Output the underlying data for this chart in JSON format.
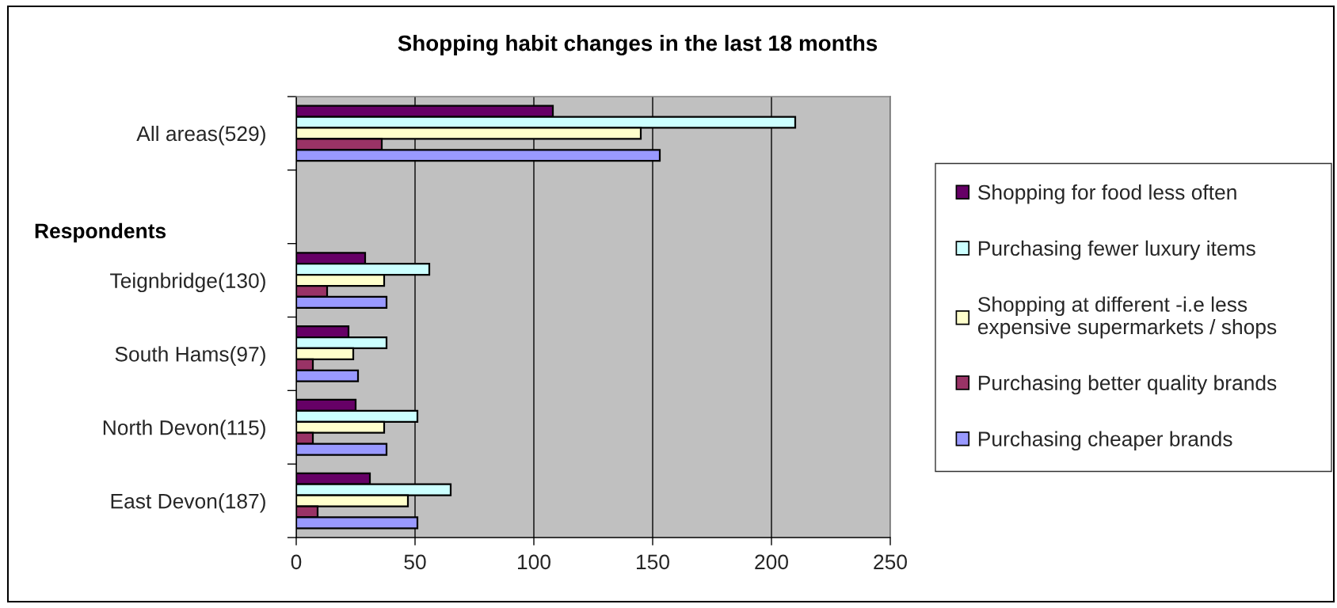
{
  "chart_data": {
    "type": "bar",
    "orientation": "horizontal",
    "title": "Shopping habit changes in the last 18 months",
    "ylabel": "Respondents",
    "categories": [
      "All areas(529)",
      null,
      "Teignbridge(130)",
      "South Hams(97)",
      "North Devon(115)",
      "East Devon(187)"
    ],
    "series": [
      {
        "name": "Shopping for food less often",
        "color": "#660066",
        "values": [
          108,
          null,
          29,
          22,
          25,
          31
        ]
      },
      {
        "name": "Purchasing fewer luxury items",
        "color": "#ccffff",
        "values": [
          210,
          null,
          56,
          38,
          51,
          65
        ]
      },
      {
        "name": "Shopping at different -i.e less\nexpensive supermarkets / shops",
        "color": "#ffffcc",
        "values": [
          145,
          null,
          37,
          24,
          37,
          47
        ]
      },
      {
        "name": "Purchasing better quality brands",
        "color": "#993366",
        "values": [
          36,
          null,
          13,
          7,
          7,
          9
        ]
      },
      {
        "name": "Purchasing cheaper brands",
        "color": "#9999ff",
        "values": [
          153,
          null,
          38,
          26,
          38,
          51
        ]
      }
    ],
    "xlim": [
      0,
      250
    ],
    "xticks": [
      0,
      50,
      100,
      150,
      200,
      250
    ],
    "grid": "x",
    "legend": "right"
  }
}
